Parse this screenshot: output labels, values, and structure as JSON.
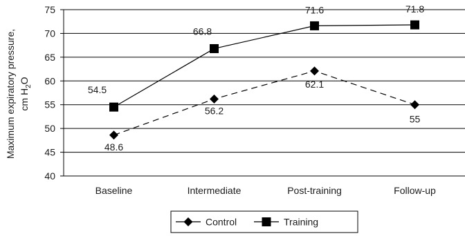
{
  "chart_data": {
    "type": "line",
    "ylabel_line1": "Maximum expiratory pressure,",
    "ylabel_line2_main": "cm H",
    "ylabel_line2_sub": "2",
    "ylabel_line2_end": "O",
    "categories": [
      "Baseline",
      "Intermediate",
      "Post-training",
      "Follow-up"
    ],
    "ylim": [
      40,
      75
    ],
    "yticks": [
      40,
      45,
      50,
      55,
      60,
      65,
      70,
      75
    ],
    "grid": true,
    "legend_position": "bottom",
    "series": [
      {
        "name": "Control",
        "values": [
          48.6,
          56.2,
          62.1,
          55
        ],
        "labels": [
          "48.6",
          "56.2",
          "62.1",
          "55"
        ],
        "marker": "diamond",
        "line_style": "dashed",
        "color": "#000000"
      },
      {
        "name": "Training",
        "values": [
          54.5,
          66.8,
          71.6,
          71.8
        ],
        "labels": [
          "54.5",
          "66.8",
          "71.6",
          "71.8"
        ],
        "marker": "square",
        "line_style": "solid",
        "color": "#000000"
      }
    ]
  }
}
